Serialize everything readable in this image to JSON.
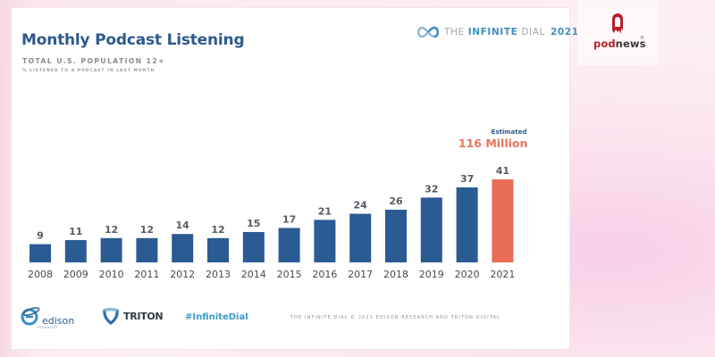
{
  "slide": {
    "title": "Monthly Podcast Listening",
    "subtitle": "TOTAL U.S. POPULATION 12+",
    "note": "% LISTENED TO A PODCAST IN LAST MONTH",
    "brand": {
      "the": "THE",
      "infinite": "INFINITE",
      "dial": "DIAL",
      "year": "2021",
      "icon": "infinity-icon"
    },
    "annotation": {
      "label": "Estimated",
      "value": "116 Million"
    },
    "footer": {
      "edison": "edison",
      "edison_sub": "research",
      "triton": "TRITON",
      "hashtag": "#InfiniteDial",
      "copyright": "THE INFINITE DIAL   © 2021 EDISON RESEARCH AND TRITON DIGITAL"
    }
  },
  "podnews": {
    "pod": "pod",
    "news": "news",
    "reg": "®"
  },
  "colors": {
    "bar": "#2b5b93",
    "highlight": "#ea6d58",
    "title": "#2e5a8c"
  },
  "chart_data": {
    "type": "bar",
    "title": "Monthly Podcast Listening",
    "subtitle": "Total U.S. Population 12+",
    "ylabel": "% listened to a podcast in last month",
    "xlabel": "",
    "categories": [
      "2008",
      "2009",
      "2010",
      "2011",
      "2012",
      "2013",
      "2014",
      "2015",
      "2016",
      "2017",
      "2018",
      "2019",
      "2020",
      "2021"
    ],
    "values": [
      9,
      11,
      12,
      12,
      14,
      12,
      15,
      17,
      21,
      24,
      26,
      32,
      37,
      41
    ],
    "highlight_index": 13,
    "annotations": [
      {
        "category": "2021",
        "text": "Estimated 116 Million"
      }
    ],
    "ylim": [
      0,
      45
    ],
    "grid": false,
    "legend": "none"
  }
}
